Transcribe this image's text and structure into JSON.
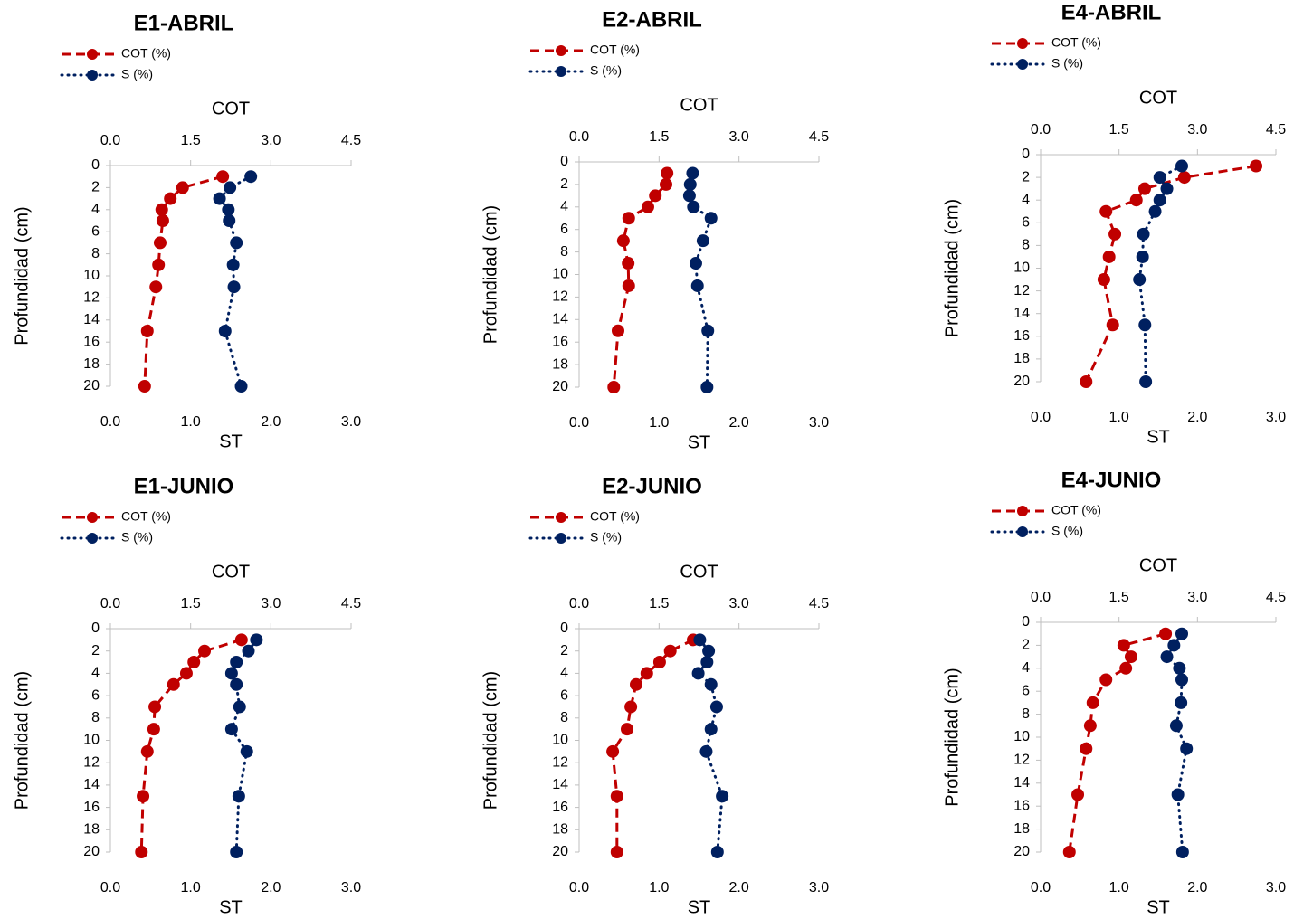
{
  "chart_data": [
    {
      "type": "profile",
      "title": "E1-ABRIL",
      "xlabel": "COT",
      "x2label": "ST",
      "ylabel": "Profundidad (cm)",
      "y": [
        1,
        2,
        3,
        4,
        5,
        7,
        9,
        11,
        15,
        20
      ],
      "ylim": [
        0,
        20
      ],
      "yticks": [
        0,
        2,
        4,
        6,
        8,
        10,
        12,
        14,
        16,
        18,
        20
      ],
      "y_inverted": true,
      "xlim": [
        0,
        4.5
      ],
      "xticks": [
        {
          "value": 0,
          "label": "0.0"
        },
        {
          "value": 1.5,
          "label": "1.5"
        },
        {
          "value": 3,
          "label": "3.0"
        },
        {
          "value": 4.5,
          "label": "4.5"
        }
      ],
      "x2lim": [
        0,
        3
      ],
      "x2ticks": [
        {
          "value": 0,
          "label": "0.0"
        },
        {
          "value": 1,
          "label": "1.0"
        },
        {
          "value": 2,
          "label": "2.0"
        },
        {
          "value": 3,
          "label": "3.0"
        }
      ],
      "series": [
        {
          "name": "COT (%)",
          "color": "#c00000",
          "axis": "x",
          "values": [
            2.1,
            1.35,
            1.12,
            0.96,
            0.98,
            0.93,
            0.9,
            0.85,
            0.69,
            0.64
          ]
        },
        {
          "name": "S (%)",
          "color": "#002060",
          "axis": "x2",
          "values": [
            1.75,
            1.49,
            1.36,
            1.47,
            1.48,
            1.57,
            1.53,
            1.54,
            1.43,
            1.63
          ]
        }
      ]
    },
    {
      "type": "profile",
      "title": "E2-ABRIL",
      "xlabel": "COT",
      "x2label": "ST",
      "ylabel": "Profundidad (cm)",
      "y": [
        1,
        2,
        3,
        4,
        5,
        7,
        9,
        11,
        15,
        20
      ],
      "ylim": [
        0,
        20
      ],
      "yticks": [
        0,
        2,
        4,
        6,
        8,
        10,
        12,
        14,
        16,
        18,
        20
      ],
      "y_inverted": true,
      "xlim": [
        0,
        4.5
      ],
      "xticks": [
        {
          "value": 0,
          "label": "0.0"
        },
        {
          "value": 1.5,
          "label": "1.5"
        },
        {
          "value": 3,
          "label": "3.0"
        },
        {
          "value": 4.5,
          "label": "4.5"
        }
      ],
      "x2lim": [
        0,
        3
      ],
      "x2ticks": [
        {
          "value": 0,
          "label": "0.0"
        },
        {
          "value": 1,
          "label": "1.0"
        },
        {
          "value": 2,
          "label": "2.0"
        },
        {
          "value": 3,
          "label": "3.0"
        }
      ],
      "series": [
        {
          "name": "COT (%)",
          "color": "#c00000",
          "axis": "x",
          "values": [
            1.65,
            1.63,
            1.43,
            1.29,
            0.93,
            0.83,
            0.92,
            0.93,
            0.73,
            0.65
          ]
        },
        {
          "name": "S (%)",
          "color": "#002060",
          "axis": "x2",
          "values": [
            1.42,
            1.39,
            1.38,
            1.43,
            1.65,
            1.55,
            1.46,
            1.48,
            1.61,
            1.6
          ]
        }
      ]
    },
    {
      "type": "profile",
      "title": "E4-ABRIL",
      "xlabel": "COT",
      "x2label": "ST",
      "ylabel": "Profundidad (cm)",
      "y": [
        1,
        2,
        3,
        4,
        5,
        7,
        9,
        11,
        15,
        20
      ],
      "ylim": [
        0,
        20
      ],
      "yticks": [
        0,
        2,
        4,
        6,
        8,
        10,
        12,
        14,
        16,
        18,
        20
      ],
      "y_inverted": true,
      "xlim": [
        0,
        4.5
      ],
      "xticks": [
        {
          "value": 0,
          "label": "0.0"
        },
        {
          "value": 1.5,
          "label": "1.5"
        },
        {
          "value": 3,
          "label": "3.0"
        },
        {
          "value": 4.5,
          "label": "4.5"
        }
      ],
      "x2lim": [
        0,
        3
      ],
      "x2ticks": [
        {
          "value": 0,
          "label": "0.0"
        },
        {
          "value": 1,
          "label": "1.0"
        },
        {
          "value": 2,
          "label": "2.0"
        },
        {
          "value": 3,
          "label": "3.0"
        }
      ],
      "series": [
        {
          "name": "COT (%)",
          "color": "#c00000",
          "axis": "x",
          "values": [
            4.12,
            2.75,
            1.99,
            1.83,
            1.25,
            1.42,
            1.31,
            1.21,
            1.38,
            0.87
          ]
        },
        {
          "name": "S (%)",
          "color": "#002060",
          "axis": "x2",
          "values": [
            1.8,
            1.52,
            1.61,
            1.52,
            1.46,
            1.31,
            1.3,
            1.26,
            1.33,
            1.34
          ]
        }
      ]
    },
    {
      "type": "profile",
      "title": "E1-JUNIO",
      "xlabel": "COT",
      "x2label": "ST",
      "ylabel": "Profundidad (cm)",
      "y": [
        1,
        2,
        3,
        4,
        5,
        7,
        9,
        11,
        15,
        20
      ],
      "ylim": [
        0,
        20
      ],
      "yticks": [
        0,
        2,
        4,
        6,
        8,
        10,
        12,
        14,
        16,
        18,
        20
      ],
      "y_inverted": true,
      "xlim": [
        0,
        4.5
      ],
      "xticks": [
        {
          "value": 0,
          "label": "0.0"
        },
        {
          "value": 1.5,
          "label": "1.5"
        },
        {
          "value": 3,
          "label": "3.0"
        },
        {
          "value": 4.5,
          "label": "4.5"
        }
      ],
      "x2lim": [
        0,
        3
      ],
      "x2ticks": [
        {
          "value": 0,
          "label": "0.0"
        },
        {
          "value": 1,
          "label": "1.0"
        },
        {
          "value": 2,
          "label": "2.0"
        },
        {
          "value": 3,
          "label": "3.0"
        }
      ],
      "series": [
        {
          "name": "COT (%)",
          "color": "#c00000",
          "axis": "x",
          "values": [
            2.45,
            1.76,
            1.56,
            1.42,
            1.18,
            0.83,
            0.81,
            0.69,
            0.61,
            0.58
          ]
        },
        {
          "name": "S (%)",
          "color": "#002060",
          "axis": "x2",
          "values": [
            1.82,
            1.72,
            1.57,
            1.51,
            1.57,
            1.61,
            1.51,
            1.7,
            1.6,
            1.57
          ]
        }
      ]
    },
    {
      "type": "profile",
      "title": "E2-JUNIO",
      "xlabel": "COT",
      "x2label": "ST",
      "ylabel": "Profundidad (cm)",
      "y": [
        1,
        2,
        3,
        4,
        5,
        7,
        9,
        11,
        15,
        20
      ],
      "ylim": [
        0,
        20
      ],
      "yticks": [
        0,
        2,
        4,
        6,
        8,
        10,
        12,
        14,
        16,
        18,
        20
      ],
      "y_inverted": true,
      "xlim": [
        0,
        4.5
      ],
      "xticks": [
        {
          "value": 0,
          "label": "0.0"
        },
        {
          "value": 1.5,
          "label": "1.5"
        },
        {
          "value": 3,
          "label": "3.0"
        },
        {
          "value": 4.5,
          "label": "4.5"
        }
      ],
      "x2lim": [
        0,
        3
      ],
      "x2ticks": [
        {
          "value": 0,
          "label": "0.0"
        },
        {
          "value": 1,
          "label": "1.0"
        },
        {
          "value": 2,
          "label": "2.0"
        },
        {
          "value": 3,
          "label": "3.0"
        }
      ],
      "series": [
        {
          "name": "COT (%)",
          "color": "#c00000",
          "axis": "x",
          "values": [
            2.14,
            1.71,
            1.51,
            1.27,
            1.07,
            0.97,
            0.9,
            0.63,
            0.71,
            0.71
          ]
        },
        {
          "name": "S (%)",
          "color": "#002060",
          "axis": "x2",
          "values": [
            1.51,
            1.62,
            1.6,
            1.49,
            1.65,
            1.72,
            1.65,
            1.59,
            1.79,
            1.73
          ]
        }
      ]
    },
    {
      "type": "profile",
      "title": "E4-JUNIO",
      "xlabel": "COT",
      "x2label": "ST",
      "ylabel": "Profundidad (cm)",
      "y": [
        1,
        2,
        3,
        4,
        5,
        7,
        9,
        11,
        15,
        20
      ],
      "ylim": [
        0,
        20
      ],
      "yticks": [
        0,
        2,
        4,
        6,
        8,
        10,
        12,
        14,
        16,
        18,
        20
      ],
      "y_inverted": true,
      "xlim": [
        0,
        4.5
      ],
      "xticks": [
        {
          "value": 0,
          "label": "0.0"
        },
        {
          "value": 1.5,
          "label": "1.5"
        },
        {
          "value": 3,
          "label": "3.0"
        },
        {
          "value": 4.5,
          "label": "4.5"
        }
      ],
      "x2lim": [
        0,
        3
      ],
      "x2ticks": [
        {
          "value": 0,
          "label": "0.0"
        },
        {
          "value": 1,
          "label": "1.0"
        },
        {
          "value": 2,
          "label": "2.0"
        },
        {
          "value": 3,
          "label": "3.0"
        }
      ],
      "series": [
        {
          "name": "COT (%)",
          "color": "#c00000",
          "axis": "x",
          "values": [
            2.39,
            1.59,
            1.73,
            1.63,
            1.25,
            1.0,
            0.95,
            0.87,
            0.71,
            0.55
          ]
        },
        {
          "name": "S (%)",
          "color": "#002060",
          "axis": "x2",
          "values": [
            1.8,
            1.7,
            1.61,
            1.77,
            1.8,
            1.79,
            1.73,
            1.86,
            1.75,
            1.81
          ]
        }
      ]
    }
  ]
}
